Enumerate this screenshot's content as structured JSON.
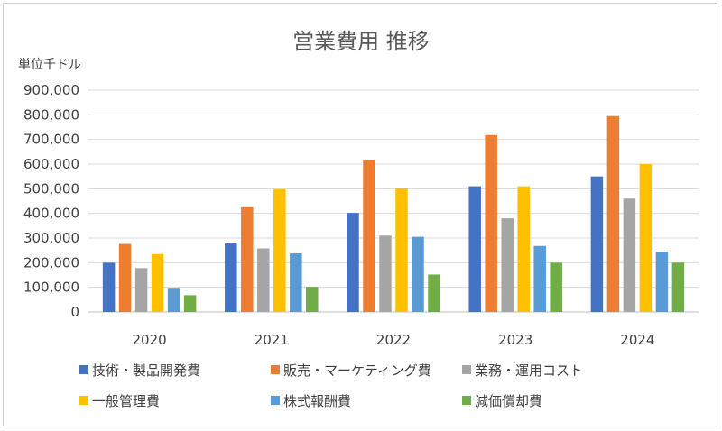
{
  "chart_data": {
    "type": "bar",
    "title": "営業費用 推移",
    "unit_label": "単位千ドル",
    "categories": [
      "2020",
      "2021",
      "2022",
      "2023",
      "2024"
    ],
    "ylim": [
      0,
      900000
    ],
    "yticks": [
      "0",
      "100,000",
      "200,000",
      "300,000",
      "400,000",
      "500,000",
      "600,000",
      "700,000",
      "800,000",
      "900,000"
    ],
    "grid": true,
    "legend_position": "bottom",
    "series": [
      {
        "name": "技術・製品開発費",
        "color": "#4472C4",
        "values": [
          200000,
          278000,
          402000,
          510000,
          550000
        ]
      },
      {
        "name": "販売・マーケティング費",
        "color": "#ED7D31",
        "values": [
          276000,
          425000,
          615000,
          718000,
          795000
        ]
      },
      {
        "name": "業務・運用コスト",
        "color": "#A5A5A5",
        "values": [
          178000,
          258000,
          310000,
          380000,
          460000
        ]
      },
      {
        "name": "一般管理費",
        "color": "#FFC000",
        "values": [
          235000,
          498000,
          502000,
          510000,
          600000
        ]
      },
      {
        "name": "株式報酬費",
        "color": "#5B9BD5",
        "values": [
          98000,
          238000,
          305000,
          268000,
          245000
        ]
      },
      {
        "name": "減価償却費",
        "color": "#70AD47",
        "values": [
          68000,
          102000,
          152000,
          200000,
          200000
        ]
      }
    ]
  }
}
